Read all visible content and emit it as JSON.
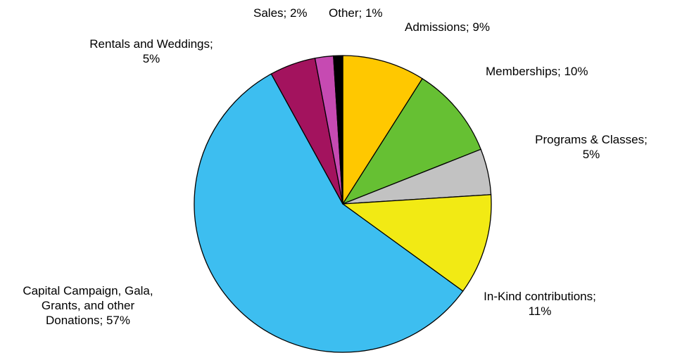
{
  "chart_data": {
    "type": "pie",
    "start": "top",
    "direction": "clockwise",
    "slices": [
      {
        "name": "Admissions",
        "value": 9,
        "label": "Admissions; 9%",
        "color": "#FFC800"
      },
      {
        "name": "Memberships",
        "value": 10,
        "label": "Memberships; 10%",
        "color": "#66C033"
      },
      {
        "name": "Programs & Classes",
        "value": 5,
        "label": "Programs & Classes;\n5%",
        "color": "#C2C2C2"
      },
      {
        "name": "In-Kind contributions",
        "value": 11,
        "label": "In-Kind contributions;\n11%",
        "color": "#F2EA14"
      },
      {
        "name": "Capital Campaign, Gala, Grants, and other Donations",
        "value": 57,
        "label": "Capital Campaign, Gala,\nGrants, and other\nDonations; 57%",
        "color": "#3DBEF0"
      },
      {
        "name": "Rentals and Weddings",
        "value": 5,
        "label": "Rentals and Weddings;\n5%",
        "color": "#A3135E"
      },
      {
        "name": "Sales",
        "value": 2,
        "label": "Sales; 2%",
        "color": "#C64AB2"
      },
      {
        "name": "Other",
        "value": 1,
        "label": "Other; 1%",
        "color": "#000000"
      }
    ]
  }
}
